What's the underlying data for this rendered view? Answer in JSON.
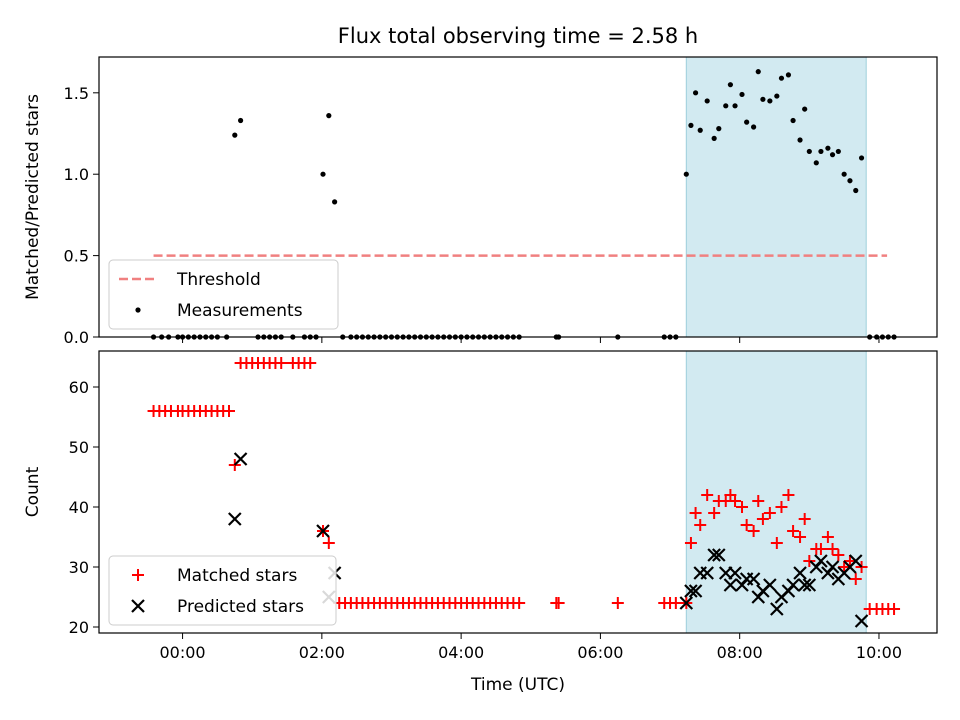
{
  "title": "Flux total observing time = 2.58 h",
  "chart_data": [
    {
      "type": "scatter",
      "ylabel": "Matched/Predicted stars",
      "xlim": [
        "22:48",
        "10:50"
      ],
      "ylim": [
        0,
        1.72
      ],
      "y_ticks": [
        "0.0",
        "0.5",
        "1.0",
        "1.5"
      ],
      "highlight_span": [
        "07:14",
        "09:49"
      ],
      "threshold": {
        "name": "Threshold",
        "value": 0.5,
        "x": [
          "23:35",
          "10:07"
        ],
        "color": "#f08080"
      },
      "legend": [
        "Threshold",
        "Measurements"
      ],
      "legend_loc": "lower left",
      "series": [
        {
          "name": "Measurements",
          "points": [
            [
              "23:35",
              0
            ],
            [
              "23:42",
              0
            ],
            [
              "23:48",
              0
            ],
            [
              "23:56",
              0
            ],
            [
              "00:00",
              0
            ],
            [
              "00:05",
              0
            ],
            [
              "00:10",
              0
            ],
            [
              "00:15",
              0
            ],
            [
              "00:20",
              0
            ],
            [
              "00:25",
              0
            ],
            [
              "00:30",
              0
            ],
            [
              "00:38",
              0
            ],
            [
              "00:45",
              1.24
            ],
            [
              "00:50",
              1.33
            ],
            [
              "01:05",
              0
            ],
            [
              "01:10",
              0
            ],
            [
              "01:15",
              0
            ],
            [
              "01:20",
              0
            ],
            [
              "01:25",
              0
            ],
            [
              "01:35",
              0
            ],
            [
              "01:45",
              0
            ],
            [
              "01:50",
              0
            ],
            [
              "01:55",
              0
            ],
            [
              "02:01",
              1.0
            ],
            [
              "02:06",
              1.36
            ],
            [
              "02:11",
              0.83
            ],
            [
              "02:18",
              0
            ],
            [
              "02:25",
              0
            ],
            [
              "02:30",
              0
            ],
            [
              "02:35",
              0
            ],
            [
              "02:40",
              0
            ],
            [
              "02:45",
              0
            ],
            [
              "02:50",
              0
            ],
            [
              "02:55",
              0
            ],
            [
              "03:00",
              0
            ],
            [
              "03:05",
              0
            ],
            [
              "03:10",
              0
            ],
            [
              "03:15",
              0
            ],
            [
              "03:20",
              0
            ],
            [
              "03:25",
              0
            ],
            [
              "03:30",
              0
            ],
            [
              "03:35",
              0
            ],
            [
              "03:40",
              0
            ],
            [
              "03:45",
              0
            ],
            [
              "03:50",
              0
            ],
            [
              "03:55",
              0
            ],
            [
              "04:00",
              0
            ],
            [
              "04:05",
              0
            ],
            [
              "04:10",
              0
            ],
            [
              "04:15",
              0
            ],
            [
              "04:20",
              0
            ],
            [
              "04:25",
              0
            ],
            [
              "04:30",
              0
            ],
            [
              "04:35",
              0
            ],
            [
              "04:40",
              0
            ],
            [
              "04:45",
              0
            ],
            [
              "04:50",
              0
            ],
            [
              "05:22",
              0
            ],
            [
              "05:24",
              0
            ],
            [
              "06:15",
              0
            ],
            [
              "06:55",
              0
            ],
            [
              "07:00",
              0
            ],
            [
              "07:05",
              0
            ],
            [
              "07:14",
              1.0
            ],
            [
              "07:18",
              1.3
            ],
            [
              "07:22",
              1.5
            ],
            [
              "07:26",
              1.27
            ],
            [
              "07:32",
              1.45
            ],
            [
              "07:38",
              1.22
            ],
            [
              "07:42",
              1.28
            ],
            [
              "07:48",
              1.42
            ],
            [
              "07:52",
              1.55
            ],
            [
              "07:56",
              1.42
            ],
            [
              "08:02",
              1.49
            ],
            [
              "08:06",
              1.32
            ],
            [
              "08:12",
              1.29
            ],
            [
              "08:16",
              1.63
            ],
            [
              "08:20",
              1.46
            ],
            [
              "08:26",
              1.45
            ],
            [
              "08:32",
              1.48
            ],
            [
              "08:36",
              1.59
            ],
            [
              "08:42",
              1.61
            ],
            [
              "08:46",
              1.33
            ],
            [
              "08:52",
              1.21
            ],
            [
              "08:56",
              1.4
            ],
            [
              "09:00",
              1.14
            ],
            [
              "09:06",
              1.07
            ],
            [
              "09:10",
              1.14
            ],
            [
              "09:16",
              1.16
            ],
            [
              "09:20",
              1.12
            ],
            [
              "09:25",
              1.14
            ],
            [
              "09:30",
              1.0
            ],
            [
              "09:35",
              0.96
            ],
            [
              "09:40",
              0.9
            ],
            [
              "09:45",
              1.1
            ],
            [
              "09:52",
              0
            ],
            [
              "09:58",
              0
            ],
            [
              "10:03",
              0
            ],
            [
              "10:08",
              0
            ],
            [
              "10:13",
              0
            ]
          ]
        }
      ]
    },
    {
      "type": "scatter",
      "xlabel": "Time (UTC)",
      "ylabel": "Count",
      "xlim": [
        "22:48",
        "10:50"
      ],
      "ylim": [
        19,
        66
      ],
      "x_ticks": [
        "00:00",
        "02:00",
        "04:00",
        "06:00",
        "08:00",
        "10:00"
      ],
      "y_ticks": [
        "20",
        "30",
        "40",
        "50",
        "60"
      ],
      "highlight_span": [
        "07:14",
        "09:49"
      ],
      "legend": [
        "Matched stars",
        "Predicted stars"
      ],
      "legend_loc": "lower left",
      "series": [
        {
          "name": "Matched stars",
          "marker": "+",
          "color": "#ff0000",
          "points": [
            [
              "23:35",
              56
            ],
            [
              "23:40",
              56
            ],
            [
              "23:45",
              56
            ],
            [
              "23:50",
              56
            ],
            [
              "23:56",
              56
            ],
            [
              "00:00",
              56
            ],
            [
              "00:05",
              56
            ],
            [
              "00:10",
              56
            ],
            [
              "00:15",
              56
            ],
            [
              "00:20",
              56
            ],
            [
              "00:25",
              56
            ],
            [
              "00:30",
              56
            ],
            [
              "00:35",
              56
            ],
            [
              "00:40",
              56
            ],
            [
              "00:45",
              47
            ],
            [
              "00:50",
              64
            ],
            [
              "00:55",
              64
            ],
            [
              "01:00",
              64
            ],
            [
              "01:05",
              64
            ],
            [
              "01:10",
              64
            ],
            [
              "01:15",
              64
            ],
            [
              "01:20",
              64
            ],
            [
              "01:25",
              64
            ],
            [
              "01:35",
              64
            ],
            [
              "01:40",
              64
            ],
            [
              "01:45",
              64
            ],
            [
              "01:50",
              64
            ],
            [
              "02:01",
              36
            ],
            [
              "02:06",
              34
            ],
            [
              "02:15",
              24
            ],
            [
              "02:20",
              24
            ],
            [
              "02:25",
              24
            ],
            [
              "02:30",
              24
            ],
            [
              "02:35",
              24
            ],
            [
              "02:40",
              24
            ],
            [
              "02:45",
              24
            ],
            [
              "02:50",
              24
            ],
            [
              "02:55",
              24
            ],
            [
              "03:00",
              24
            ],
            [
              "03:05",
              24
            ],
            [
              "03:10",
              24
            ],
            [
              "03:15",
              24
            ],
            [
              "03:20",
              24
            ],
            [
              "03:25",
              24
            ],
            [
              "03:30",
              24
            ],
            [
              "03:35",
              24
            ],
            [
              "03:40",
              24
            ],
            [
              "03:45",
              24
            ],
            [
              "03:50",
              24
            ],
            [
              "03:55",
              24
            ],
            [
              "04:00",
              24
            ],
            [
              "04:05",
              24
            ],
            [
              "04:10",
              24
            ],
            [
              "04:15",
              24
            ],
            [
              "04:20",
              24
            ],
            [
              "04:25",
              24
            ],
            [
              "04:30",
              24
            ],
            [
              "04:35",
              24
            ],
            [
              "04:40",
              24
            ],
            [
              "04:45",
              24
            ],
            [
              "04:50",
              24
            ],
            [
              "05:22",
              24
            ],
            [
              "05:24",
              24
            ],
            [
              "06:15",
              24
            ],
            [
              "06:55",
              24
            ],
            [
              "07:00",
              24
            ],
            [
              "07:05",
              24
            ],
            [
              "07:14",
              24
            ],
            [
              "07:18",
              34
            ],
            [
              "07:22",
              39
            ],
            [
              "07:26",
              37
            ],
            [
              "07:32",
              42
            ],
            [
              "07:38",
              39
            ],
            [
              "07:42",
              41
            ],
            [
              "07:48",
              41
            ],
            [
              "07:52",
              42
            ],
            [
              "07:56",
              41
            ],
            [
              "08:02",
              40
            ],
            [
              "08:06",
              37
            ],
            [
              "08:12",
              36
            ],
            [
              "08:16",
              41
            ],
            [
              "08:20",
              38
            ],
            [
              "08:26",
              39
            ],
            [
              "08:32",
              34
            ],
            [
              "08:36",
              40
            ],
            [
              "08:42",
              42
            ],
            [
              "08:46",
              36
            ],
            [
              "08:52",
              35
            ],
            [
              "08:56",
              38
            ],
            [
              "09:00",
              31
            ],
            [
              "09:06",
              33
            ],
            [
              "09:10",
              33
            ],
            [
              "09:16",
              35
            ],
            [
              "09:20",
              33
            ],
            [
              "09:25",
              32
            ],
            [
              "09:30",
              30
            ],
            [
              "09:35",
              31
            ],
            [
              "09:40",
              28
            ],
            [
              "09:45",
              30
            ],
            [
              "09:52",
              23
            ],
            [
              "09:58",
              23
            ],
            [
              "10:03",
              23
            ],
            [
              "10:08",
              23
            ],
            [
              "10:13",
              23
            ]
          ]
        },
        {
          "name": "Predicted stars",
          "marker": "x",
          "color": "#000000",
          "points": [
            [
              "00:45",
              38
            ],
            [
              "00:50",
              48
            ],
            [
              "02:01",
              36
            ],
            [
              "02:06",
              25
            ],
            [
              "02:11",
              29
            ],
            [
              "07:14",
              24
            ],
            [
              "07:18",
              26
            ],
            [
              "07:22",
              26
            ],
            [
              "07:26",
              29
            ],
            [
              "07:32",
              29
            ],
            [
              "07:38",
              32
            ],
            [
              "07:42",
              32
            ],
            [
              "07:48",
              29
            ],
            [
              "07:52",
              27
            ],
            [
              "07:56",
              29
            ],
            [
              "08:02",
              27
            ],
            [
              "08:06",
              28
            ],
            [
              "08:12",
              28
            ],
            [
              "08:16",
              25
            ],
            [
              "08:20",
              26
            ],
            [
              "08:26",
              27
            ],
            [
              "08:32",
              23
            ],
            [
              "08:36",
              25
            ],
            [
              "08:42",
              26
            ],
            [
              "08:46",
              27
            ],
            [
              "08:52",
              29
            ],
            [
              "08:56",
              27
            ],
            [
              "09:00",
              27
            ],
            [
              "09:06",
              30
            ],
            [
              "09:10",
              31
            ],
            [
              "09:16",
              29
            ],
            [
              "09:20",
              30
            ],
            [
              "09:25",
              28
            ],
            [
              "09:30",
              29
            ],
            [
              "09:35",
              30
            ],
            [
              "09:40",
              31
            ],
            [
              "09:45",
              21
            ]
          ]
        }
      ]
    }
  ]
}
